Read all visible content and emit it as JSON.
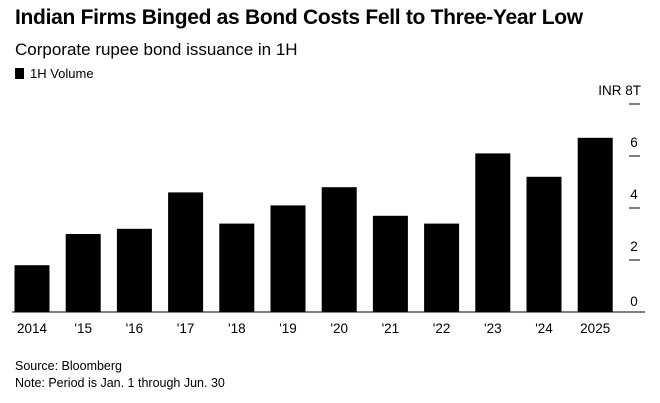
{
  "chart_data": {
    "type": "bar",
    "title": "Indian Firms Binged as Bond Costs Fell to Three-Year Low",
    "subtitle": "Corporate rupee bond issuance in 1H",
    "legend": {
      "placement": "top-left",
      "entries": [
        "1H Volume"
      ]
    },
    "categories": [
      "2014",
      "'15",
      "'16",
      "'17",
      "'18",
      "'19",
      "'20",
      "'21",
      "'22",
      "'23",
      "'24",
      "2025"
    ],
    "series": [
      {
        "name": "1H Volume",
        "color": "#000000",
        "values": [
          1.8,
          3.0,
          3.2,
          4.6,
          3.4,
          4.1,
          4.8,
          3.7,
          3.4,
          6.1,
          5.2,
          6.7
        ]
      }
    ],
    "yaxis": {
      "position": "right",
      "ticks": [
        "0",
        "2",
        "4",
        "6",
        "INR 8T"
      ],
      "tick_values": [
        0,
        2,
        4,
        6,
        8
      ],
      "unit_label": "INR 8T"
    },
    "ylim": [
      0,
      8
    ],
    "grid": false,
    "source": "Source: Bloomberg",
    "note": "Note: Period is Jan. 1 through Jun. 30"
  }
}
